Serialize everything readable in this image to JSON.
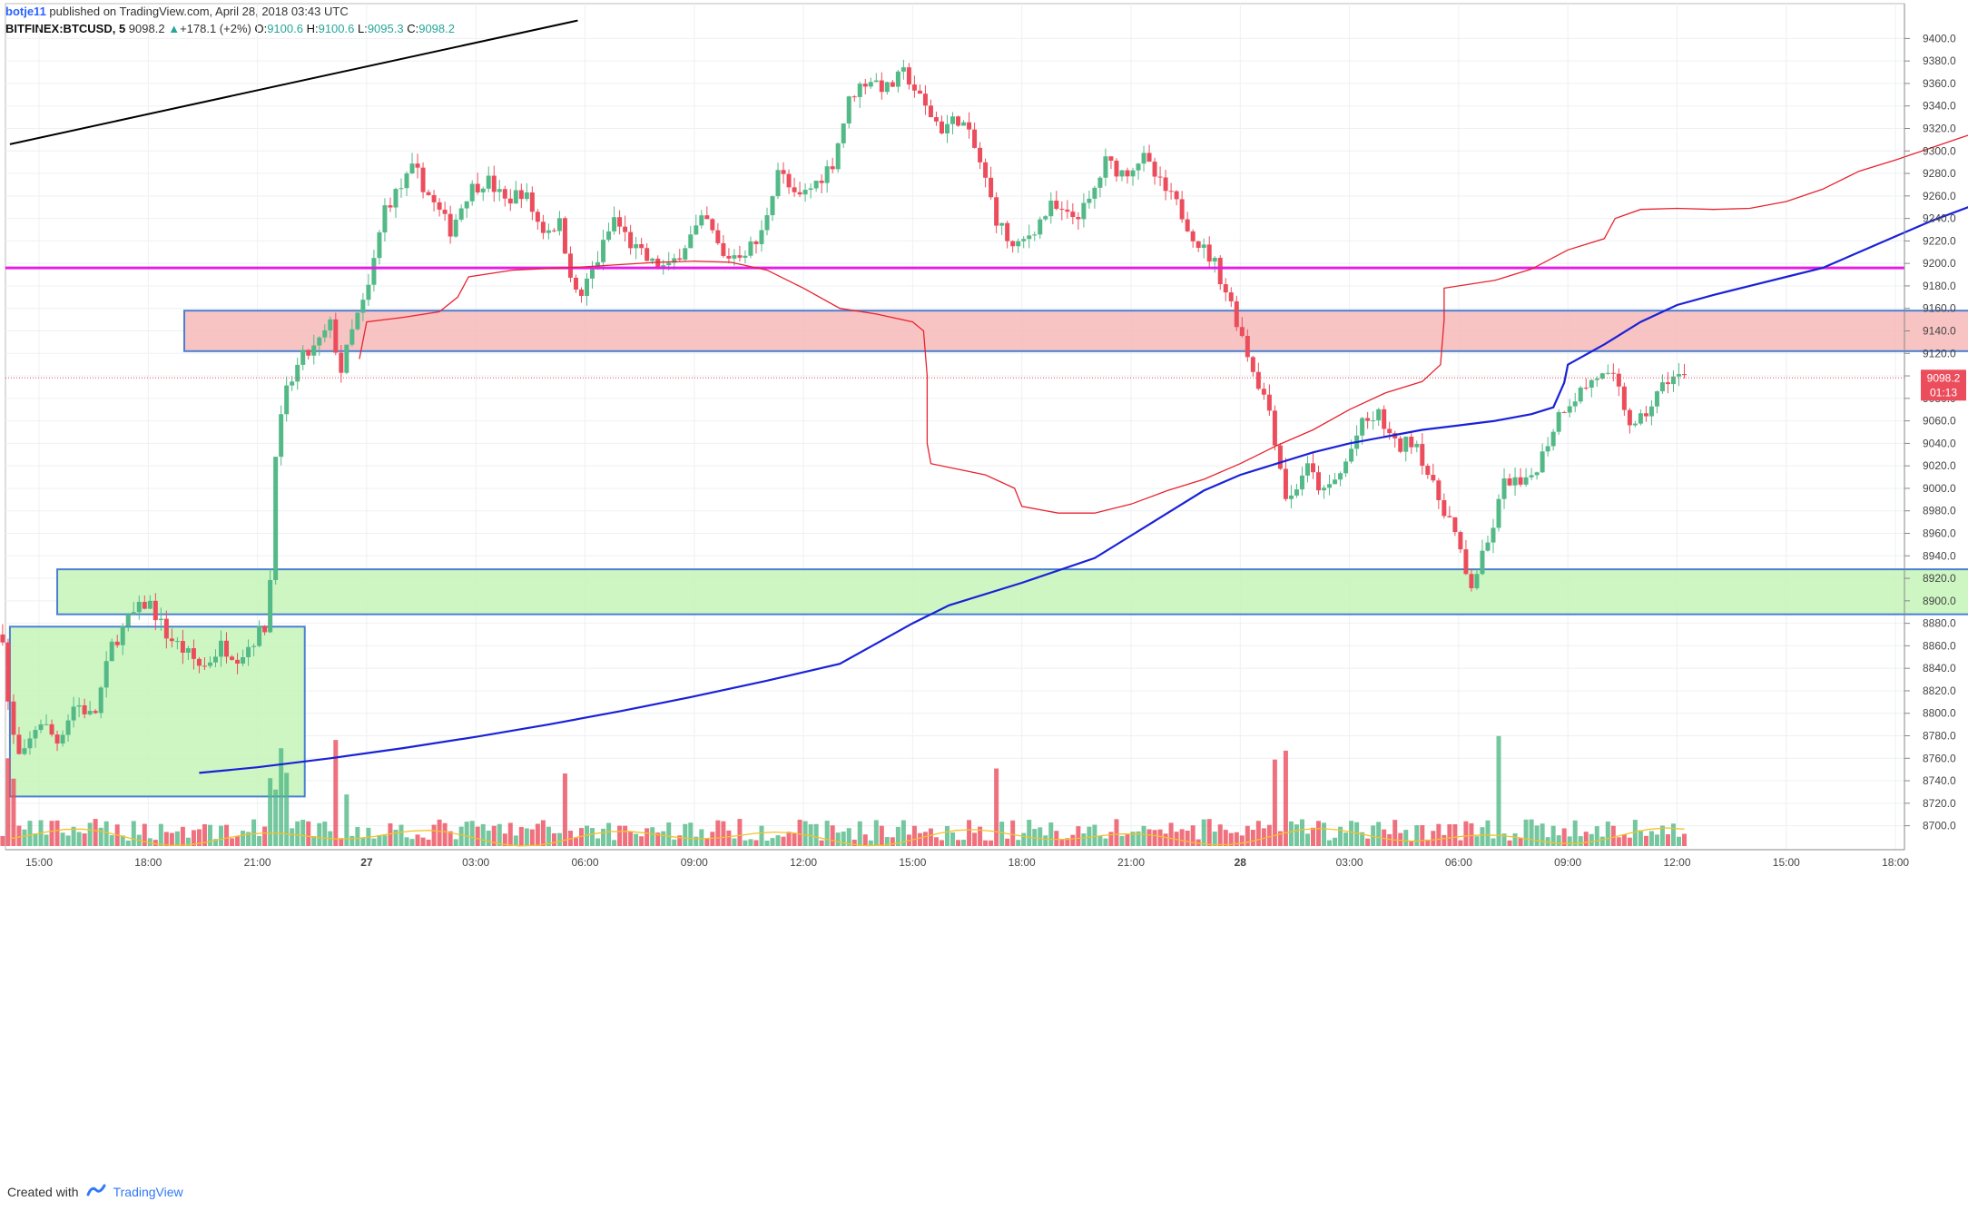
{
  "header": {
    "author": "botje11",
    "published_text": "published on TradingView.com, April 28, 2018 03:43 UTC",
    "symbol": "BITFINEX:BTCUSD, 5",
    "last": "9098.2",
    "change": "+178.1 (+2%)",
    "o_label": "O:",
    "o_value": "9100.6",
    "h_label": "H:",
    "h_value": "9100.6",
    "l_label": "L:",
    "l_value": "9095.3",
    "c_label": "C:",
    "c_value": "9098.2"
  },
  "footer": {
    "created_with": "Created with",
    "brand": "TradingView"
  },
  "colors": {
    "up": "#53b987",
    "down": "#eb4d5c",
    "resistance_zone": "#f7b9b9",
    "support_zone": "#c5f5b9",
    "zone_border": "#4a7fd1",
    "horizontal_line": "#e51ee5",
    "ema_fast": "#e8232f",
    "ema_slow": "#1a22d6",
    "trendline": "#000000"
  },
  "chart_data": {
    "type": "candlestick",
    "symbol": "BITFINEX:BTCUSD",
    "interval": "5",
    "price_axis": {
      "min": 8690,
      "max": 9410,
      "ticks": [
        9400,
        9380,
        9360,
        9340,
        9320,
        9300,
        9280,
        9260,
        9240,
        9220,
        9200,
        9180,
        9160,
        9140,
        9120,
        9100,
        9080,
        9060,
        9040,
        9020,
        9000,
        8980,
        8960,
        8940,
        8920,
        8900,
        8880,
        8860,
        8840,
        8820,
        8800,
        8780,
        8760,
        8740,
        8720,
        8700
      ]
    },
    "time_axis": {
      "labels": [
        "15:00",
        "18:00",
        "21:00",
        "27",
        "03:00",
        "06:00",
        "09:00",
        "12:00",
        "15:00",
        "18:00",
        "21:00",
        "28",
        "03:00",
        "06:00",
        "09:00",
        "12:00",
        "15:00",
        "18:00"
      ],
      "bold_labels": [
        "27",
        "28"
      ]
    },
    "last_price": {
      "value": 9098.2,
      "label": "9098.2",
      "countdown": "01:13"
    },
    "horizontal_line": {
      "price": 9196
    },
    "zones": [
      {
        "name": "resistance",
        "price_top": 9158,
        "price_bottom": 9122,
        "start_hours": 0,
        "end_hours": 62
      },
      {
        "name": "support",
        "price_top": 8928,
        "price_bottom": 8888,
        "start_hours": 0.5,
        "end_hours": 61
      },
      {
        "name": "accumulation",
        "price_top": 8877,
        "price_bottom": 8726,
        "start_hours": -0.8,
        "end_hours": 7.3
      }
    ],
    "trendline": {
      "points": [
        [
          -0.8,
          9306
        ],
        [
          14.8,
          9416
        ]
      ]
    },
    "ema_fast": [
      [
        8.8,
        9115
      ],
      [
        9,
        9148
      ],
      [
        10,
        9152
      ],
      [
        11,
        9157
      ],
      [
        11.5,
        9170
      ],
      [
        11.8,
        9188
      ],
      [
        13,
        9194
      ],
      [
        15,
        9197
      ],
      [
        17,
        9201
      ],
      [
        18,
        9202
      ],
      [
        19,
        9201
      ],
      [
        20,
        9194
      ],
      [
        21,
        9178
      ],
      [
        22,
        9160
      ],
      [
        23,
        9155
      ],
      [
        24,
        9148
      ],
      [
        24.3,
        9140
      ],
      [
        24.4,
        9100
      ],
      [
        24.4,
        9040
      ],
      [
        24.5,
        9022
      ],
      [
        26,
        9012
      ],
      [
        26.8,
        9000
      ],
      [
        27,
        8984
      ],
      [
        28,
        8978
      ],
      [
        29,
        8978
      ],
      [
        30,
        8986
      ],
      [
        31,
        8998
      ],
      [
        32,
        9008
      ],
      [
        33,
        9022
      ],
      [
        34,
        9038
      ],
      [
        35,
        9052
      ],
      [
        36,
        9070
      ],
      [
        37,
        9085
      ],
      [
        38,
        9095
      ],
      [
        38.5,
        9110
      ],
      [
        38.6,
        9150
      ],
      [
        38.6,
        9178
      ],
      [
        40,
        9185
      ],
      [
        41,
        9195
      ],
      [
        42,
        9212
      ],
      [
        43,
        9222
      ],
      [
        43.3,
        9240
      ],
      [
        44,
        9248
      ],
      [
        45,
        9249
      ],
      [
        46,
        9248
      ],
      [
        47,
        9249
      ],
      [
        48,
        9255
      ],
      [
        49,
        9266
      ],
      [
        50,
        9282
      ],
      [
        51,
        9292
      ],
      [
        52,
        9303
      ],
      [
        53,
        9314
      ],
      [
        54,
        9324
      ],
      [
        55,
        9333
      ],
      [
        56,
        9339
      ]
    ],
    "ema_slow": [
      [
        4.4,
        8747
      ],
      [
        6,
        8752
      ],
      [
        8,
        8760
      ],
      [
        10,
        8769
      ],
      [
        12,
        8779
      ],
      [
        14,
        8790
      ],
      [
        16,
        8802
      ],
      [
        18,
        8815
      ],
      [
        20,
        8829
      ],
      [
        22,
        8844
      ],
      [
        23,
        8862
      ],
      [
        24,
        8880
      ],
      [
        25,
        8896
      ],
      [
        27,
        8916
      ],
      [
        29,
        8938
      ],
      [
        30,
        8958
      ],
      [
        31,
        8978
      ],
      [
        32,
        8998
      ],
      [
        33,
        9012
      ],
      [
        34,
        9022
      ],
      [
        35,
        9032
      ],
      [
        36,
        9040
      ],
      [
        37,
        9046
      ],
      [
        38,
        9052
      ],
      [
        39,
        9056
      ],
      [
        40,
        9060
      ],
      [
        41,
        9066
      ],
      [
        41.6,
        9072
      ],
      [
        41.9,
        9094
      ],
      [
        42,
        9110
      ],
      [
        43,
        9128
      ],
      [
        44,
        9148
      ],
      [
        45,
        9163
      ],
      [
        46,
        9172
      ],
      [
        47,
        9180
      ],
      [
        48,
        9188
      ],
      [
        49,
        9196
      ],
      [
        50,
        9210
      ],
      [
        51,
        9224
      ],
      [
        52,
        9238
      ],
      [
        53,
        9250
      ],
      [
        54,
        9257
      ],
      [
        55,
        9264
      ],
      [
        56,
        9272
      ]
    ],
    "ohlc_keyframes": [
      [
        -1,
        8870
      ],
      [
        -0.8,
        8790
      ],
      [
        -0.5,
        8755
      ],
      [
        0,
        8795
      ],
      [
        0.5,
        8775
      ],
      [
        1,
        8810
      ],
      [
        1.5,
        8795
      ],
      [
        2,
        8860
      ],
      [
        2.5,
        8885
      ],
      [
        3,
        8900
      ],
      [
        3.5,
        8870
      ],
      [
        4,
        8855
      ],
      [
        4.5,
        8840
      ],
      [
        5,
        8860
      ],
      [
        5.5,
        8850
      ],
      [
        6,
        8870
      ],
      [
        6.3,
        8880
      ],
      [
        6.5,
        9035
      ],
      [
        6.8,
        9085
      ],
      [
        7.2,
        9115
      ],
      [
        7.6,
        9125
      ],
      [
        8,
        9145
      ],
      [
        8.3,
        9105
      ],
      [
        8.7,
        9150
      ],
      [
        9,
        9170
      ],
      [
        9.5,
        9250
      ],
      [
        10,
        9270
      ],
      [
        10.3,
        9285
      ],
      [
        10.8,
        9255
      ],
      [
        11.3,
        9230
      ],
      [
        11.8,
        9265
      ],
      [
        12.3,
        9275
      ],
      [
        12.8,
        9255
      ],
      [
        13.3,
        9265
      ],
      [
        13.8,
        9230
      ],
      [
        14.3,
        9235
      ],
      [
        14.8,
        9165
      ],
      [
        15.3,
        9200
      ],
      [
        15.8,
        9240
      ],
      [
        16.3,
        9215
      ],
      [
        16.8,
        9200
      ],
      [
        17.3,
        9195
      ],
      [
        17.8,
        9220
      ],
      [
        18.3,
        9240
      ],
      [
        18.8,
        9205
      ],
      [
        19.3,
        9210
      ],
      [
        19.8,
        9220
      ],
      [
        20.3,
        9285
      ],
      [
        20.8,
        9255
      ],
      [
        21.3,
        9270
      ],
      [
        21.8,
        9290
      ],
      [
        22.3,
        9350
      ],
      [
        22.8,
        9365
      ],
      [
        23.3,
        9355
      ],
      [
        23.8,
        9370
      ],
      [
        24.3,
        9340
      ],
      [
        24.8,
        9320
      ],
      [
        25.3,
        9330
      ],
      [
        25.8,
        9295
      ],
      [
        26.3,
        9240
      ],
      [
        26.8,
        9210
      ],
      [
        27.3,
        9230
      ],
      [
        27.8,
        9250
      ],
      [
        28.3,
        9240
      ],
      [
        28.8,
        9250
      ],
      [
        29.3,
        9290
      ],
      [
        29.8,
        9280
      ],
      [
        30.3,
        9295
      ],
      [
        30.8,
        9270
      ],
      [
        31.3,
        9250
      ],
      [
        31.8,
        9220
      ],
      [
        32.3,
        9200
      ],
      [
        32.8,
        9160
      ],
      [
        33.3,
        9110
      ],
      [
        33.8,
        9070
      ],
      [
        34.3,
        8985
      ],
      [
        34.8,
        9020
      ],
      [
        35.3,
        8995
      ],
      [
        35.8,
        9015
      ],
      [
        36.3,
        9055
      ],
      [
        36.8,
        9065
      ],
      [
        37.3,
        9035
      ],
      [
        37.8,
        9045
      ],
      [
        38.3,
        9000
      ],
      [
        38.8,
        8970
      ],
      [
        39.3,
        8910
      ],
      [
        39.8,
        8950
      ],
      [
        40.3,
        9010
      ],
      [
        40.8,
        9000
      ],
      [
        41.3,
        9030
      ],
      [
        41.8,
        9070
      ],
      [
        42.3,
        9085
      ],
      [
        42.8,
        9100
      ],
      [
        43.3,
        9095
      ],
      [
        43.8,
        9050
      ],
      [
        44.3,
        9075
      ],
      [
        44.8,
        9100
      ],
      [
        45.2,
        9098
      ]
    ],
    "volume": {
      "max_bar_value": 100,
      "bars_note": "volume bars shown below candles with yellow moving average"
    }
  }
}
